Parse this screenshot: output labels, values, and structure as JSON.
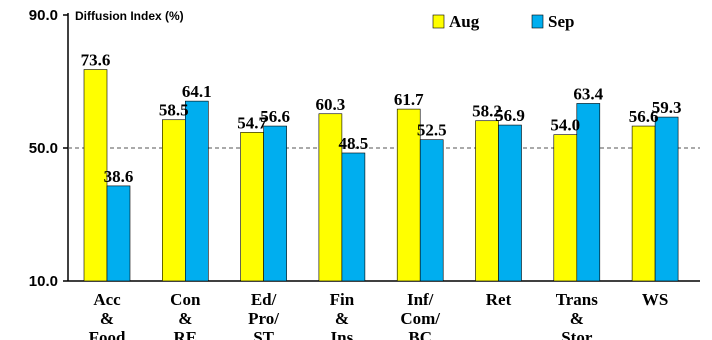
{
  "chart_data": {
    "type": "bar",
    "ylabel": "Diffusion Index (%)",
    "ylim": [
      10,
      90
    ],
    "yticks": [
      "10.0",
      "50.0",
      "90.0"
    ],
    "reference_line": 50,
    "legend_position": "top-right",
    "categories": [
      [
        "Acc",
        "&",
        "Food"
      ],
      [
        "Con",
        "&",
        "RE"
      ],
      [
        "Ed/",
        "Pro/",
        "ST"
      ],
      [
        "Fin",
        "&",
        "Ins"
      ],
      [
        "Inf/",
        "Com/",
        "BC"
      ],
      [
        "Ret"
      ],
      [
        "Trans",
        "&",
        "Stor"
      ],
      [
        "WS"
      ]
    ],
    "series": [
      {
        "name": "Aug",
        "color": "#ffff00",
        "values": [
          73.6,
          58.5,
          54.7,
          60.3,
          61.7,
          58.2,
          54.0,
          56.6
        ]
      },
      {
        "name": "Sep",
        "color": "#00aeef",
        "values": [
          38.6,
          64.1,
          56.6,
          48.5,
          52.5,
          56.9,
          63.4,
          59.3
        ]
      }
    ]
  }
}
